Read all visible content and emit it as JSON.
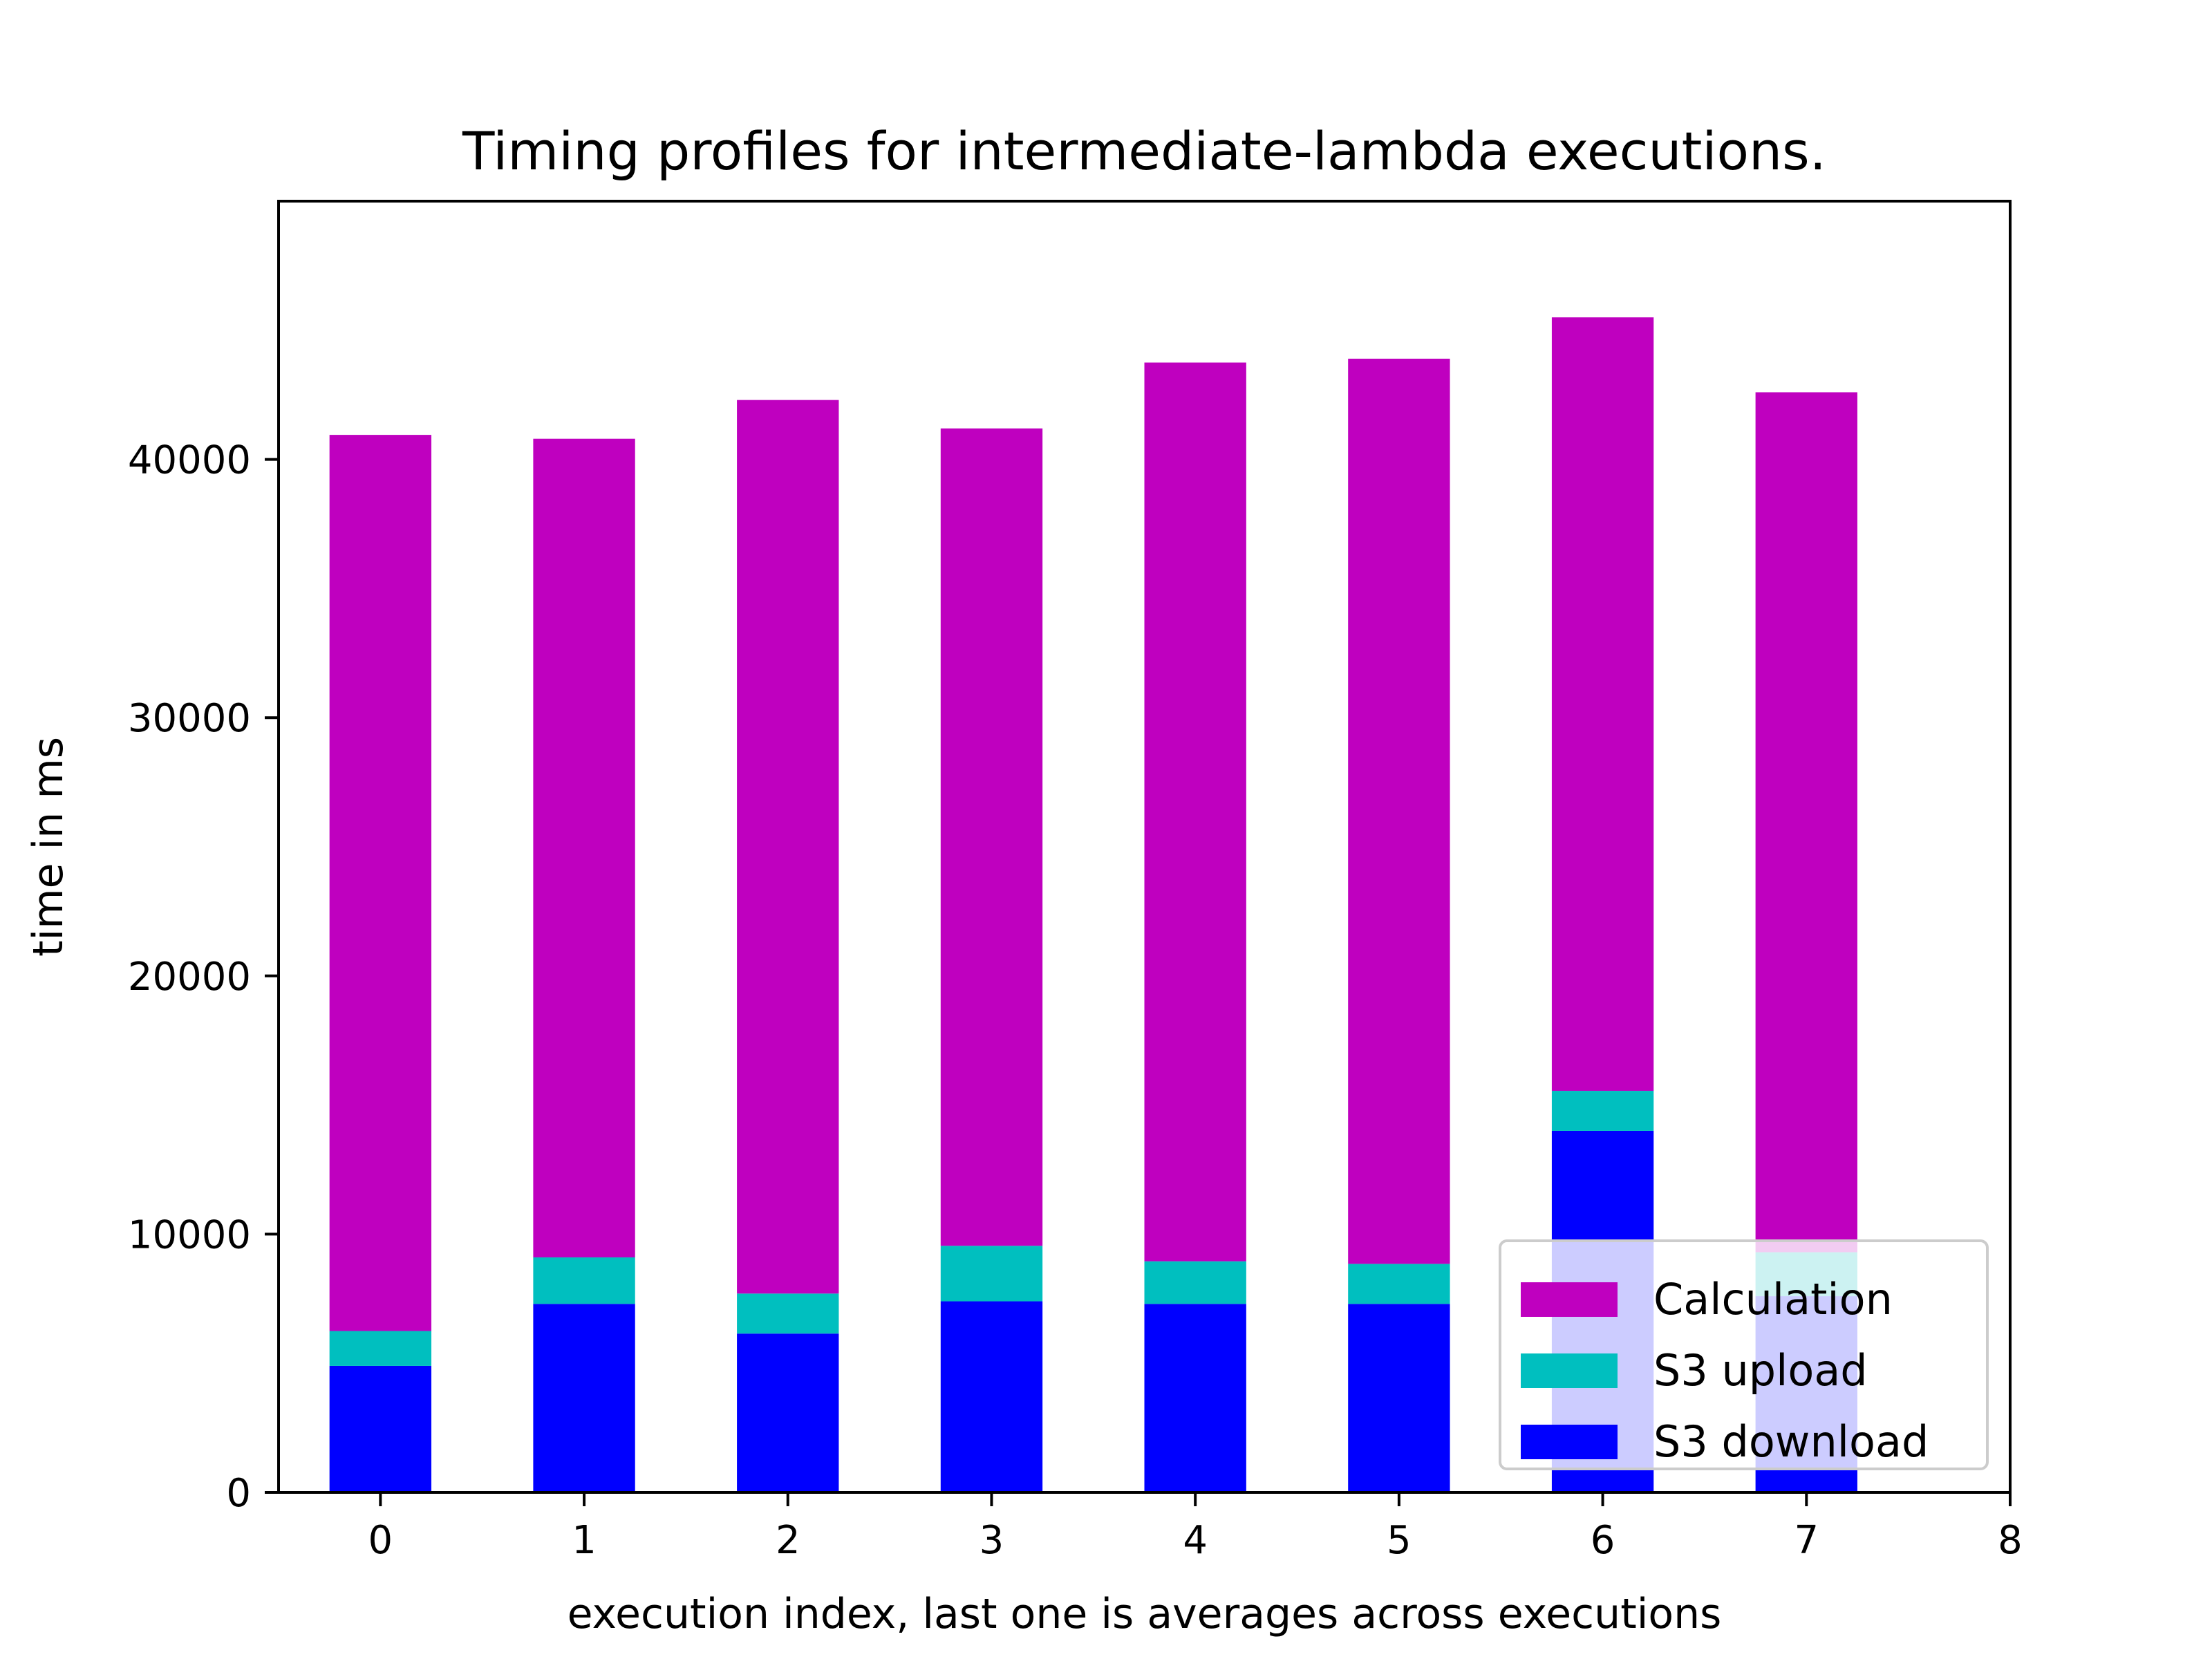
{
  "chart_data": {
    "type": "bar",
    "stacked": true,
    "title": "Timing profiles for intermediate-lambda executions.",
    "xlabel": "execution index, last one is averages across executions",
    "ylabel": "time in ms",
    "xlim": [
      -0.5,
      8
    ],
    "ylim": [
      0,
      50000
    ],
    "x": [
      0,
      1,
      2,
      3,
      4,
      5,
      6,
      7
    ],
    "x_ticks": [
      "0",
      "1",
      "2",
      "3",
      "4",
      "5",
      "6",
      "7",
      "8"
    ],
    "x_tick_values": [
      0,
      1,
      2,
      3,
      4,
      5,
      6,
      7,
      8
    ],
    "y_ticks": [
      "0",
      "10000",
      "20000",
      "30000",
      "40000"
    ],
    "y_tick_values": [
      0,
      10000,
      20000,
      30000,
      40000
    ],
    "bar_width": 0.5,
    "grid": false,
    "legend_position": "lower-right",
    "series": [
      {
        "name": "S3 download",
        "color": "#0000ff",
        "values": [
          4900,
          7300,
          6150,
          7400,
          7300,
          7300,
          14000,
          7600
        ]
      },
      {
        "name": "S3 upload",
        "color": "#00bfbf",
        "values": [
          1350,
          1800,
          1550,
          2150,
          1650,
          1550,
          1550,
          1700
        ]
      },
      {
        "name": "Calculation",
        "color": "#bf00bf",
        "values": [
          34700,
          31700,
          34600,
          31650,
          34800,
          35050,
          29950,
          33300
        ]
      }
    ],
    "legend_order": [
      "Calculation",
      "S3 upload",
      "S3 download"
    ]
  }
}
